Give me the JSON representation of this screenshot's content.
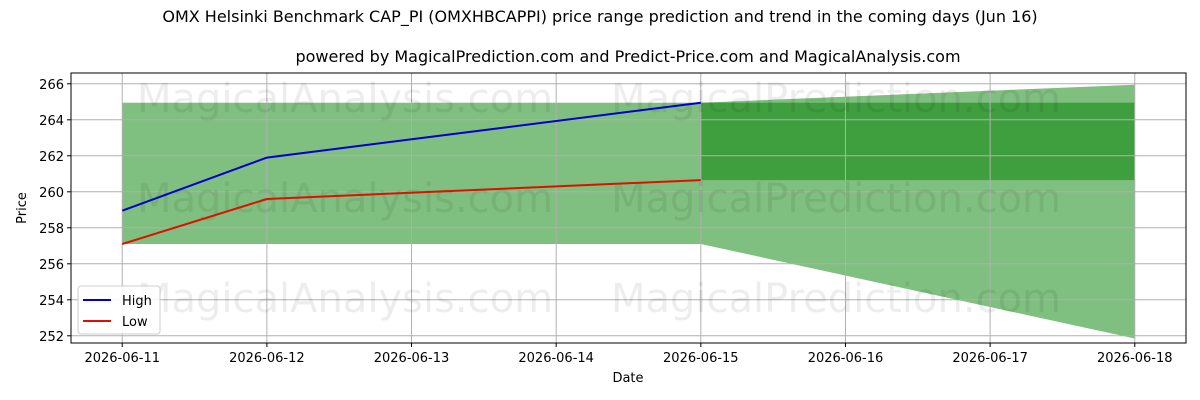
{
  "chart_data": {
    "type": "line",
    "title": "OMX Helsinki Benchmark CAP_PI (OMXHBCAPPI) price range prediction and trend in the coming days (Jun 16)",
    "subtitle": "powered by MagicalPrediction.com and Predict-Price.com and MagicalAnalysis.com",
    "xlabel": "Date",
    "ylabel": "Price",
    "x_ticks": [
      "2026-06-11",
      "2026-06-12",
      "2026-06-13",
      "2026-06-14",
      "2026-06-15",
      "2026-06-16",
      "2026-06-17",
      "2026-06-18"
    ],
    "y_ticks": [
      252,
      254,
      256,
      258,
      260,
      262,
      264,
      266
    ],
    "xlim": [
      "2026-06-10 15:30",
      "2026-06-18 08:30"
    ],
    "ylim": [
      251.6,
      266.6
    ],
    "grid": true,
    "legend_position": "bottom-left",
    "series": [
      {
        "name": "High",
        "color": "#0000cc",
        "points": [
          [
            "2026-06-11",
            258.95
          ],
          [
            "2026-06-12",
            261.9
          ],
          [
            "2026-06-15",
            264.95
          ]
        ]
      },
      {
        "name": "Low",
        "color": "#dd1100",
        "points": [
          [
            "2026-06-11",
            257.1
          ],
          [
            "2026-06-12",
            259.6
          ],
          [
            "2026-06-15",
            260.65
          ]
        ]
      }
    ],
    "historical_band": {
      "color": "#7fbf7f",
      "x": [
        "2026-06-11",
        "2026-06-15"
      ],
      "low": 257.1,
      "high": 264.95
    },
    "forecast_cone": {
      "color": "#7fbf7f",
      "x": [
        "2026-06-15",
        "2026-06-18"
      ],
      "low": [
        257.1,
        251.85
      ],
      "high": [
        264.95,
        265.95
      ]
    },
    "forecast_band": {
      "color": "#3f9f3f",
      "x": [
        "2026-06-15",
        "2026-06-18"
      ],
      "low": 260.65,
      "high": 264.95
    }
  },
  "watermarks": [
    "MagicalAnalysis.com",
    "MagicalPrediction.com",
    "MagicalAnalysis.com",
    "MagicalPrediction.com",
    "MagicalAnalysis.com",
    "MagicalPrediction.com"
  ]
}
